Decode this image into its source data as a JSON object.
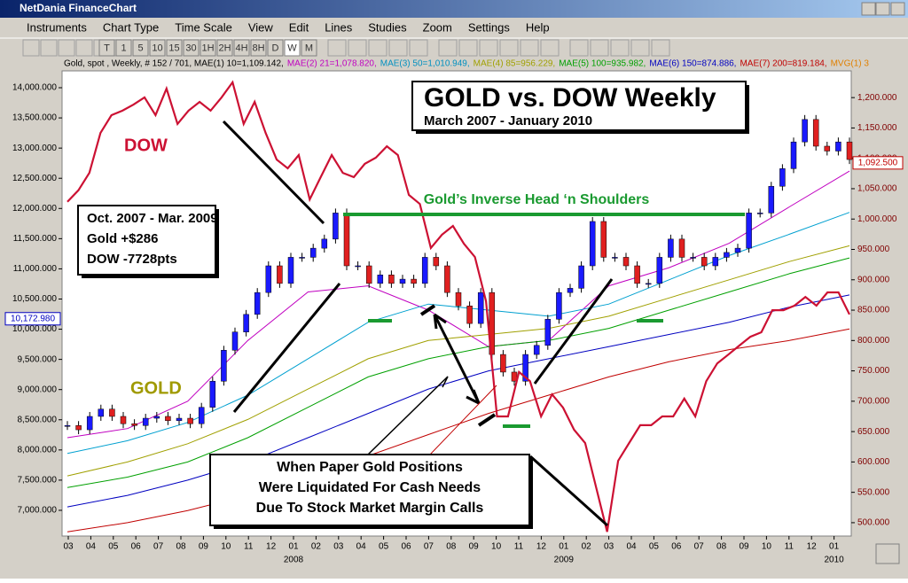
{
  "window": {
    "title": "NetDania FinanceChart",
    "menu": [
      "Instruments",
      "Chart Type",
      "Time Scale",
      "View",
      "Edit",
      "Lines",
      "Studies",
      "Zoom",
      "Settings",
      "Help"
    ],
    "toolbar": [
      "T",
      "1",
      "5",
      "10",
      "15",
      "30",
      "1H",
      "2H",
      "4H",
      "8H",
      "D",
      "W",
      "M"
    ]
  },
  "chart_data": {
    "type": "line",
    "title": "GOLD vs. DOW Weekly",
    "subtitle": "March 2007 - January 2010",
    "legend_items": [
      {
        "text": "Gold, spot , Weekly, # 152 / 701, MAE(1) 10=1,109.142,",
        "color": "#000000"
      },
      {
        "text": "MAE(2) 21=1,078.820,",
        "color": "#c000c0"
      },
      {
        "text": "MAE(3) 50=1,010.949,",
        "color": "#0090c0"
      },
      {
        "text": "MAE(4) 85=956.229,",
        "color": "#a0a000"
      },
      {
        "text": "MAE(5) 100=935.982,",
        "color": "#00a000"
      },
      {
        "text": "MAE(6) 150=874.886,",
        "color": "#0000c0"
      },
      {
        "text": "MAE(7) 200=819.184,",
        "color": "#c00000"
      },
      {
        "text": "MVG(1) 3",
        "color": "#e08000"
      }
    ],
    "xticks": [
      "03",
      "04",
      "05",
      "06",
      "07",
      "08",
      "09",
      "10",
      "11",
      "12",
      "01",
      "02",
      "03",
      "04",
      "05",
      "06",
      "07",
      "08",
      "09",
      "10",
      "11",
      "12",
      "01",
      "02",
      "03",
      "04",
      "05",
      "06",
      "07",
      "08",
      "09",
      "10",
      "11",
      "12",
      "01"
    ],
    "years": [
      "2008",
      "2009",
      "2010"
    ],
    "ylim": [
      6574,
      14279
    ],
    "yticks": [
      {
        "value": 7000,
        "label": "7,000.000"
      },
      {
        "value": 7500,
        "label": "7,500.000"
      },
      {
        "value": 8000,
        "label": "8,000.000"
      },
      {
        "value": 8500,
        "label": "8,500.000"
      },
      {
        "value": 9000,
        "label": "9,000.000"
      },
      {
        "value": 9500,
        "label": "9,500.000"
      },
      {
        "value": 10000,
        "label": "10,000.000"
      },
      {
        "value": 10500,
        "label": "10,500.000"
      },
      {
        "value": 11000,
        "label": "11,000.000"
      },
      {
        "value": 11500,
        "label": "11,500.000"
      },
      {
        "value": 12000,
        "label": "12,000.000"
      },
      {
        "value": 12500,
        "label": "12,500.000"
      },
      {
        "value": 13000,
        "label": "13,000.000"
      },
      {
        "value": 13500,
        "label": "13,500.000"
      },
      {
        "value": 14000,
        "label": "14,000.000"
      }
    ],
    "y2lim": [
      478,
      1244
    ],
    "y2ticks": [
      {
        "value": 500,
        "label": "500.000"
      },
      {
        "value": 550,
        "label": "550.000"
      },
      {
        "value": 600,
        "label": "600.000"
      },
      {
        "value": 650,
        "label": "650.000"
      },
      {
        "value": 700,
        "label": "700.000"
      },
      {
        "value": 750,
        "label": "750.000"
      },
      {
        "value": 800,
        "label": "800.000"
      },
      {
        "value": 850,
        "label": "850.000"
      },
      {
        "value": 900,
        "label": "900.000"
      },
      {
        "value": 950,
        "label": "950.000"
      },
      {
        "value": 1000,
        "label": "1,000.000"
      },
      {
        "value": 1050,
        "label": "1,050.000"
      },
      {
        "value": 1100,
        "label": "1,100.000"
      },
      {
        "value": 1150,
        "label": "1,150.000"
      },
      {
        "value": 1200,
        "label": "1,200.000"
      }
    ],
    "last_left": {
      "value": 10172.98,
      "label": "10,172.980"
    },
    "last_right": {
      "value": 1092.5,
      "label": "1,092.500"
    },
    "series": [
      {
        "name": "DOW",
        "color": "#cc1133",
        "style": "line",
        "values": [
          12110,
          12300,
          12590,
          13250,
          13545,
          13620,
          13720,
          13840,
          13545,
          13985,
          13400,
          13620,
          13765,
          13620,
          13840,
          14090,
          13400,
          13765,
          13250,
          12810,
          12665,
          12885,
          12150,
          12520,
          12885,
          12590,
          12520,
          12740,
          12840,
          13030,
          12885,
          12225,
          12075,
          11345,
          11565,
          11710,
          11415,
          11195,
          10465,
          8555,
          8555,
          9290,
          9140,
          8555,
          8920,
          8700,
          8335,
          8115,
          7380,
          6645,
          7820,
          8115,
          8410,
          8410,
          8555,
          8555,
          8850,
          8555,
          9140,
          9435,
          9580,
          9730,
          9875,
          9950,
          10315,
          10315,
          10390,
          10535,
          10390,
          10610,
          10610,
          10245
        ]
      },
      {
        "name": "GOLD",
        "color": "#a09a00",
        "up_color": "#1a1aff",
        "down_color": "#e02020",
        "style": "candle",
        "axis": "y2",
        "values": [
          660,
          653,
          675,
          687,
          675,
          663,
          660,
          672,
          675,
          668,
          672,
          663,
          690,
          733,
          784,
          814,
          843,
          879,
          923,
          894,
          937,
          937,
          952,
          967,
          1010,
          923,
          923,
          894,
          908,
          894,
          901,
          894,
          937,
          923,
          879,
          857,
          828,
          879,
          777,
          748,
          733,
          777,
          792,
          835,
          879,
          886,
          923,
          996,
          937,
          937,
          923,
          894,
          894,
          937,
          967,
          937,
          937,
          923,
          937,
          945,
          952,
          1010,
          1010,
          1054,
          1083,
          1127,
          1164,
          1120,
          1112,
          1127,
          1098
        ]
      },
      {
        "name": "MAE(2) 21",
        "color": "#c000c0",
        "style": "line",
        "axis": "y2",
        "values": [
          640,
          655,
          700,
          800,
          880,
          890,
          850,
          790,
          800,
          890,
          920,
          960,
          1020,
          1079
        ]
      },
      {
        "name": "MAE(3) 50",
        "color": "#00a0d0",
        "style": "line",
        "axis": "y2",
        "values": [
          614,
          635,
          665,
          710,
          770,
          830,
          860,
          850,
          840,
          860,
          900,
          940,
          975,
          1011
        ]
      },
      {
        "name": "MAE(4) 85",
        "color": "#a0a000",
        "style": "line",
        "axis": "y2",
        "values": [
          577,
          600,
          630,
          670,
          720,
          770,
          800,
          810,
          820,
          840,
          870,
          900,
          930,
          956
        ]
      },
      {
        "name": "MAE(5) 100",
        "color": "#00a000",
        "style": "line",
        "axis": "y2",
        "values": [
          558,
          575,
          600,
          640,
          690,
          740,
          770,
          790,
          800,
          820,
          850,
          880,
          910,
          936
        ]
      },
      {
        "name": "MAE(6) 150",
        "color": "#0000c0",
        "style": "line",
        "axis": "y2",
        "values": [
          526,
          545,
          570,
          600,
          640,
          680,
          720,
          750,
          770,
          790,
          810,
          830,
          855,
          875
        ]
      },
      {
        "name": "MAE(7) 200",
        "color": "#c00000",
        "style": "line",
        "axis": "y2",
        "values": [
          485,
          500,
          520,
          545,
          575,
          610,
          645,
          680,
          710,
          740,
          765,
          785,
          800,
          819
        ]
      }
    ],
    "annotations": {
      "dow_label": "DOW",
      "gold_label": "GOLD",
      "box": [
        "Oct. 2007 - Mar. 2009",
        "Gold +$286",
        "DOW -7728pts"
      ],
      "pattern": "Gold’s Inverse Head ‘n Shoulders",
      "note": [
        "When Paper Gold Positions",
        "Were Liquidated For Cash Needs",
        "Due To Stock Market Margin Calls"
      ]
    }
  }
}
